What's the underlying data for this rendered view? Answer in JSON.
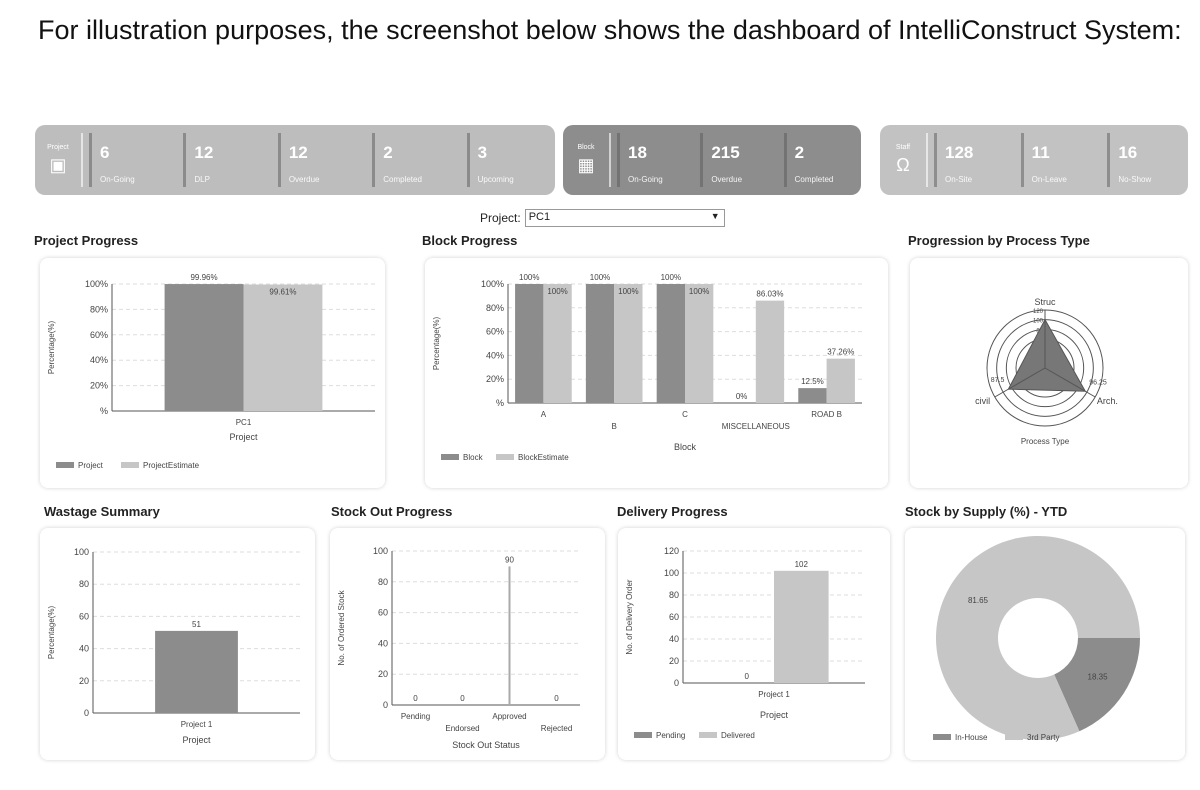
{
  "intro_text": "For illustration purposes, the screenshot below shows the dashboard of IntelliConstruct System:",
  "colors": {
    "dark_series": "#8c8c8c",
    "light_series": "#c6c6c6",
    "strip_project": "#bdbdbd",
    "strip_block": "#8d8d8d",
    "strip_staff": "#c2c2c2"
  },
  "project_strip": {
    "label": "Project",
    "icon": "project-board-icon",
    "stats": [
      {
        "value": "6",
        "label": "On-Going"
      },
      {
        "value": "12",
        "label": "DLP"
      },
      {
        "value": "12",
        "label": "Overdue"
      },
      {
        "value": "2",
        "label": "Completed"
      },
      {
        "value": "3",
        "label": "Upcoming"
      }
    ]
  },
  "block_strip": {
    "label": "Block",
    "icon": "block-grid-icon",
    "stats": [
      {
        "value": "18",
        "label": "On-Going"
      },
      {
        "value": "215",
        "label": "Overdue"
      },
      {
        "value": "2",
        "label": "Completed"
      }
    ]
  },
  "staff_strip": {
    "label": "Staff",
    "icon": "staff-people-icon",
    "stats": [
      {
        "value": "128",
        "label": "On-Site"
      },
      {
        "value": "11",
        "label": "On-Leave"
      },
      {
        "value": "16",
        "label": "No-Show"
      }
    ]
  },
  "project_select": {
    "label": "Project:",
    "value": "PC1"
  },
  "sections": {
    "project_progress": "Project Progress",
    "block_progress": "Block Progress",
    "process_type": "Progression by Process Type",
    "wastage": "Wastage Summary",
    "stock_out": "Stock Out Progress",
    "delivery": "Delivery Progress",
    "stock_supply": "Stock by Supply (%) - YTD"
  },
  "chart_data": [
    {
      "id": "project_progress",
      "type": "bar",
      "categories": [
        "PC1"
      ],
      "series": [
        {
          "name": "Project",
          "values": [
            99.96
          ],
          "labels": [
            "99.96%"
          ]
        },
        {
          "name": "ProjectEstimate",
          "values": [
            99.61
          ],
          "labels": [
            "99.61%"
          ]
        }
      ],
      "xlabel": "Project",
      "ylabel": "Percentage(%)",
      "ylim": [
        0,
        100
      ],
      "yticks": [
        0,
        20,
        40,
        60,
        80,
        100
      ],
      "yticklabels": [
        "%",
        "20%",
        "40%",
        "60%",
        "80%",
        "100%"
      ],
      "grid": true,
      "legend": "bottom-left"
    },
    {
      "id": "block_progress",
      "type": "bar",
      "categories": [
        "A",
        "B",
        "C",
        "MISCELLANEOUS",
        "ROAD B"
      ],
      "series": [
        {
          "name": "Block",
          "values": [
            100,
            100,
            100,
            0,
            12.5
          ],
          "labels": [
            "100%",
            "100%",
            "100%",
            "0%",
            "12.5%"
          ]
        },
        {
          "name": "BlockEstimate",
          "values": [
            100,
            100,
            100,
            86.03,
            37.26
          ],
          "labels": [
            "100%",
            "100%",
            "100%",
            "86.03%",
            "37.26%"
          ]
        }
      ],
      "xlabel": "Block",
      "ylabel": "Percentage(%)",
      "ylim": [
        0,
        100
      ],
      "yticks": [
        0,
        20,
        40,
        60,
        80,
        100
      ],
      "yticklabels": [
        "%",
        "20%",
        "40%",
        "60%",
        "80%",
        "100%"
      ],
      "grid": true,
      "legend": "bottom-left"
    },
    {
      "id": "process_type",
      "type": "radar",
      "axes": [
        "Struc",
        "Arch.",
        "civil"
      ],
      "values": [
        100,
        96.25,
        87.5
      ],
      "value_labels": [
        "",
        "96.25",
        "87.5"
      ],
      "rlim": [
        0,
        120
      ],
      "rticks": [
        20,
        40,
        60,
        80,
        100,
        120
      ],
      "xlabel": "Process Type"
    },
    {
      "id": "wastage",
      "type": "bar",
      "categories": [
        "Project 1"
      ],
      "series": [
        {
          "values": [
            51
          ],
          "labels": [
            "51"
          ]
        }
      ],
      "xlabel": "Project",
      "ylabel": "Percentage(%)",
      "ylim": [
        0,
        100
      ],
      "yticks": [
        0,
        20,
        40,
        60,
        80,
        100
      ],
      "yticklabels": [
        "0",
        "20",
        "40",
        "60",
        "80",
        "100"
      ],
      "grid": true
    },
    {
      "id": "stock_out",
      "type": "bar",
      "categories": [
        "Pending",
        "Endorsed",
        "Approved",
        "Rejected"
      ],
      "series": [
        {
          "values": [
            0,
            0,
            90,
            0
          ],
          "labels": [
            "0",
            "0",
            "90",
            "0"
          ]
        }
      ],
      "xlabel": "Stock Out Status",
      "ylabel": "No. of Ordered Stock",
      "ylim": [
        0,
        100
      ],
      "yticks": [
        0,
        20,
        40,
        60,
        80,
        100
      ],
      "yticklabels": [
        "0",
        "20",
        "40",
        "60",
        "80",
        "100"
      ],
      "grid": true
    },
    {
      "id": "delivery",
      "type": "bar",
      "categories": [
        "Project 1"
      ],
      "series": [
        {
          "name": "Pending",
          "values": [
            0
          ],
          "labels": [
            "0"
          ]
        },
        {
          "name": "Delivered",
          "values": [
            102
          ],
          "labels": [
            "102"
          ]
        }
      ],
      "xlabel": "Project",
      "ylabel": "No. of Delivery Order",
      "ylim": [
        0,
        120
      ],
      "yticks": [
        0,
        20,
        40,
        60,
        80,
        100,
        120
      ],
      "yticklabels": [
        "0",
        "20",
        "40",
        "60",
        "80",
        "100",
        "120"
      ],
      "grid": true,
      "legend": "bottom-left"
    },
    {
      "id": "stock_supply",
      "type": "pie",
      "donut": true,
      "labels": [
        "In-House",
        "3rd Party"
      ],
      "values": [
        18.35,
        81.65
      ],
      "value_labels": [
        "18.35",
        "81.65"
      ],
      "legend": "bottom-left"
    }
  ]
}
